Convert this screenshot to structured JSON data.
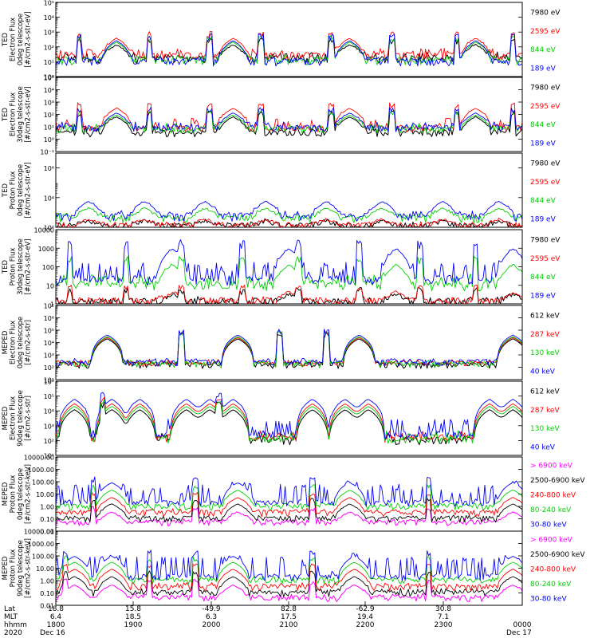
{
  "chart_data": [
    {
      "type": "line",
      "panel": "ted-electron-0deg",
      "ylabel": [
        "TED",
        "Electron Flux",
        "0deg telescope",
        "[#/cm2-s-str-eV]"
      ],
      "scale": "log",
      "ylim": [
        1,
        100000
      ],
      "ticks": [
        1,
        10,
        100,
        1000,
        10000,
        100000
      ],
      "tick_labels": [
        "10⁰",
        "10¹",
        "10²",
        "10³",
        "10⁴",
        "10⁵"
      ],
      "series": [
        {
          "name": "7980 eV",
          "color": "#000000",
          "base": 15,
          "noise": 25,
          "peak": 120
        },
        {
          "name": "2595 eV",
          "color": "#ff0000",
          "base": 25,
          "noise": 50,
          "peak": 350
        },
        {
          "name": "844 eV",
          "color": "#00d000",
          "base": 12,
          "noise": 10,
          "peak": 200
        },
        {
          "name": "189 eV",
          "color": "#0000ff",
          "base": 10,
          "noise": 8,
          "peak": 250
        }
      ],
      "bursts": [
        0.05,
        0.2,
        0.33,
        0.44,
        0.59,
        0.72,
        0.86,
        0.98
      ],
      "arcs": [
        0.13,
        0.38,
        0.63,
        0.9
      ]
    },
    {
      "type": "line",
      "panel": "ted-electron-30deg",
      "ylabel": [
        "TED",
        "Electron Flux",
        "30deg telescope",
        "[#/cm2-s-str-eV]"
      ],
      "scale": "log",
      "ylim": [
        0.1,
        100000
      ],
      "ticks": [
        0.1,
        1,
        10,
        100,
        1000,
        10000,
        100000
      ],
      "tick_labels": [
        "10⁻¹",
        "10⁰",
        "10¹",
        "10²",
        "10³",
        "10⁴",
        "10⁵"
      ],
      "series": [
        {
          "name": "7980 eV",
          "color": "#000000",
          "base": 3,
          "noise": 8,
          "peak": 60
        },
        {
          "name": "2595 eV",
          "color": "#ff0000",
          "base": 8,
          "noise": 40,
          "peak": 300
        },
        {
          "name": "844 eV",
          "color": "#00d000",
          "base": 6,
          "noise": 10,
          "peak": 80
        },
        {
          "name": "189 eV",
          "color": "#0000ff",
          "base": 8,
          "noise": 12,
          "peak": 120
        }
      ],
      "bursts": [
        0.05,
        0.2,
        0.33,
        0.44,
        0.59,
        0.72,
        0.86,
        0.98
      ],
      "arcs": [
        0.13,
        0.38,
        0.63,
        0.9
      ]
    },
    {
      "type": "line",
      "panel": "ted-proton-0deg",
      "ylabel": [
        "TED",
        "Proton Flux",
        "0deg telescope",
        "[#/cm2-s-str-eV]"
      ],
      "scale": "log",
      "ylim": [
        100,
        10000000
      ],
      "ticks": [
        100,
        10000,
        1000000
      ],
      "tick_labels": [
        "10²",
        "10⁴",
        "10⁶"
      ],
      "series": [
        {
          "name": "7980 eV",
          "color": "#000000",
          "base": 120,
          "noise": 30,
          "peak": 150
        },
        {
          "name": "2595 eV",
          "color": "#ff0000",
          "base": 130,
          "noise": 40,
          "peak": 200
        },
        {
          "name": "844 eV",
          "color": "#00d000",
          "base": 400,
          "noise": 300,
          "peak": 1500
        },
        {
          "name": "189 eV",
          "color": "#0000ff",
          "base": 500,
          "noise": 600,
          "peak": 5000
        }
      ],
      "bursts": [],
      "arcs": [
        0.07,
        0.19,
        0.32,
        0.45,
        0.58,
        0.7,
        0.83,
        0.95
      ]
    },
    {
      "type": "line",
      "panel": "ted-proton-30deg",
      "ylabel": [
        "TED",
        "Proton Flux",
        "30deg telescope",
        "[#/cm2-s-str-eV]"
      ],
      "scale": "log",
      "ylim": [
        1,
        10000
      ],
      "ticks": [
        1,
        10,
        100,
        1000,
        10000
      ],
      "tick_labels": [
        "1",
        "10",
        "100",
        "1000",
        "10000"
      ],
      "series": [
        {
          "name": "7980 eV",
          "color": "#000000",
          "base": 1.2,
          "noise": 0.5,
          "peak": 2
        },
        {
          "name": "2595 eV",
          "color": "#ff0000",
          "base": 1.3,
          "noise": 0.5,
          "peak": 3
        },
        {
          "name": "844 eV",
          "color": "#00d000",
          "base": 10,
          "noise": 25,
          "peak": 120
        },
        {
          "name": "189 eV",
          "color": "#0000ff",
          "base": 20,
          "noise": 150,
          "peak": 900
        }
      ],
      "bursts": [
        0.03,
        0.15,
        0.27,
        0.4,
        0.52,
        0.65,
        0.78,
        0.9
      ],
      "arcs": [
        0.25,
        0.5,
        0.73,
        0.98
      ]
    },
    {
      "type": "line",
      "panel": "meped-electron-0deg",
      "ylabel": [
        "MEPED",
        "Electron Flux",
        "0deg telescope",
        "[#/cm2-s-str]"
      ],
      "scale": "log",
      "ylim": [
        10,
        10000000
      ],
      "ticks": [
        10,
        100,
        1000,
        10000,
        100000,
        1000000,
        10000000
      ],
      "tick_labels": [
        "10¹",
        "10²",
        "10³",
        "10⁴",
        "10⁵",
        "10⁶",
        "10⁷"
      ],
      "series": [
        {
          "name": "612 keV",
          "color": "#000000",
          "base": 150,
          "noise": 80,
          "peak": 20000
        },
        {
          "name": "287 keV",
          "color": "#ff0000",
          "base": 200,
          "noise": 150,
          "peak": 25000
        },
        {
          "name": "130 keV",
          "color": "#00d000",
          "base": 180,
          "noise": 90,
          "peak": 30000
        },
        {
          "name": "40 keV",
          "color": "#0000ff",
          "base": 250,
          "noise": 200,
          "peak": 40000
        }
      ],
      "bursts": [
        0.27,
        0.48,
        0.58
      ],
      "arcs": [
        0.11,
        0.39,
        0.65,
        0.98
      ]
    },
    {
      "type": "line",
      "panel": "meped-electron-90deg",
      "ylabel": [
        "MEPED",
        "Electron Flux",
        "90deg telescope",
        "[#/cm2-s-str]"
      ],
      "scale": "log",
      "ylim": [
        10,
        1000000
      ],
      "ticks": [
        10,
        100,
        1000,
        10000,
        100000,
        1000000
      ],
      "tick_labels": [
        "10¹",
        "10²",
        "10³",
        "10⁴",
        "10⁵",
        "10⁶"
      ],
      "series": [
        {
          "name": "612 keV",
          "color": "#000000",
          "base": 100,
          "noise": 150,
          "peak": 12000
        },
        {
          "name": "287 keV",
          "color": "#ff0000",
          "base": 150,
          "noise": 300,
          "peak": 30000
        },
        {
          "name": "130 keV",
          "color": "#00d000",
          "base": 120,
          "noise": 400,
          "peak": 20000
        },
        {
          "name": "40 keV",
          "color": "#0000ff",
          "base": 250,
          "noise": 2500,
          "peak": 60000
        }
      ],
      "bursts": [
        0.1,
        0.35
      ],
      "arcs": [
        0.04,
        0.12,
        0.18,
        0.28,
        0.33,
        0.38,
        0.55,
        0.62,
        0.67,
        0.93,
        0.98
      ]
    },
    {
      "type": "line",
      "panel": "meped-proton-0deg",
      "ylabel": [
        "MEPED",
        "Proton Flux",
        "0deg telescope",
        "[#/cm2-s-str-keV]"
      ],
      "scale": "log",
      "ylim": [
        0.01,
        10000
      ],
      "ticks": [
        0.01,
        0.1,
        1,
        10,
        100,
        1000,
        10000
      ],
      "tick_labels": [
        "0.01",
        "0.10",
        "1.00",
        "10.00",
        "100.00",
        "1000.00",
        "10000.00"
      ],
      "series": [
        {
          "name": "> 6900 keV",
          "color": "#ff00ff",
          "base": 0.05,
          "noise": 0.03,
          "peak": 0.3
        },
        {
          "name": "2500-6900 keV",
          "color": "#000000",
          "base": 0.1,
          "noise": 0.05,
          "peak": 1.5
        },
        {
          "name": "240-800 keV",
          "color": "#ff0000",
          "base": 0.3,
          "noise": 0.2,
          "peak": 5
        },
        {
          "name": "80-240 keV",
          "color": "#00d000",
          "base": 1,
          "noise": 0.4,
          "peak": 20
        },
        {
          "name": "30-80 keV",
          "color": "#0000ff",
          "base": 2,
          "noise": 60,
          "peak": 80
        }
      ],
      "bursts": [
        0.08,
        0.3,
        0.55,
        0.8
      ],
      "arcs": [
        0.12,
        0.39,
        0.63,
        0.98
      ]
    },
    {
      "type": "line",
      "panel": "meped-proton-90deg",
      "ylabel": [
        "MEPED",
        "Proton Flux",
        "90deg telescope",
        "[#/cm2-s-str-keV]"
      ],
      "scale": "log",
      "ylim": [
        0.01,
        10000
      ],
      "ticks": [
        0.01,
        0.1,
        1,
        10,
        100,
        1000,
        10000
      ],
      "tick_labels": [
        "0.01",
        "0.10",
        "1.00",
        "10.00",
        "100.00",
        "1000.00",
        "10000.00"
      ],
      "series": [
        {
          "name": "> 6900 keV",
          "color": "#ff00ff",
          "base": 0.04,
          "noise": 0.03,
          "peak": 0.4
        },
        {
          "name": "2500-6900 keV",
          "color": "#000000",
          "base": 0.1,
          "noise": 0.08,
          "peak": 2
        },
        {
          "name": "240-800 keV",
          "color": "#ff0000",
          "base": 0.3,
          "noise": 0.3,
          "peak": 8
        },
        {
          "name": "80-240 keV",
          "color": "#00d000",
          "base": 1,
          "noise": 0.6,
          "peak": 30
        },
        {
          "name": "30-80 keV",
          "color": "#0000ff",
          "base": 2,
          "noise": 80,
          "peak": 90
        }
      ],
      "bursts": [
        0.02,
        0.2,
        0.3,
        0.55,
        0.8
      ],
      "arcs": [
        0.04,
        0.12,
        0.38,
        0.64,
        0.98
      ]
    }
  ],
  "x_axis": {
    "row_labels": [
      "Lat",
      "MLT",
      "hhmm",
      "2020"
    ],
    "ticks": [
      {
        "lat": "18.8",
        "mlt": "6.4",
        "hhmm": "1800",
        "date": "Dec 16"
      },
      {
        "lat": "15.8",
        "mlt": "18.5",
        "hhmm": "1900",
        "date": ""
      },
      {
        "lat": "-49.9",
        "mlt": "6.3",
        "hhmm": "2000",
        "date": ""
      },
      {
        "lat": "82.8",
        "mlt": "17.5",
        "hhmm": "2100",
        "date": ""
      },
      {
        "lat": "-62.9",
        "mlt": "19.4",
        "hhmm": "2200",
        "date": ""
      },
      {
        "lat": "30.8",
        "mlt": "7.1",
        "hhmm": "2300",
        "date": ""
      },
      {
        "lat": "",
        "mlt": "",
        "hhmm": "0000",
        "date": "Dec 17"
      }
    ]
  }
}
